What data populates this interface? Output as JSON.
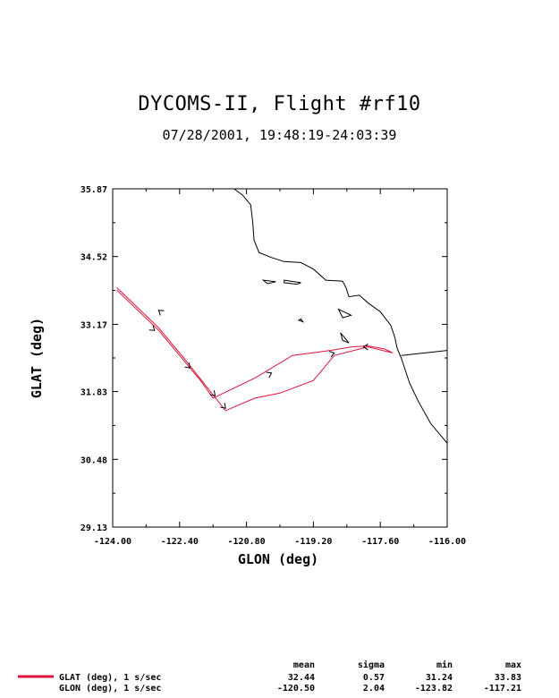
{
  "title": "DYCOMS-II, Flight #rf10",
  "subtitle": "07/28/2001, 19:48:19-24:03:39",
  "chart_data": {
    "type": "line",
    "xlabel": "GLON (deg)",
    "ylabel": "GLAT (deg)",
    "xlim": [
      -124.0,
      -116.0
    ],
    "ylim": [
      29.13,
      35.87
    ],
    "x_ticks": [
      "-124.00",
      "-122.40",
      "-120.80",
      "-119.20",
      "-117.60",
      "-116.00"
    ],
    "y_ticks": [
      "29.13",
      "30.48",
      "31.83",
      "33.17",
      "34.52",
      "35.87"
    ],
    "series_color": "#dc143c",
    "track": [
      [
        -123.9,
        33.85
      ],
      [
        -122.9,
        33.05
      ],
      [
        -122.3,
        32.45
      ],
      [
        -121.9,
        32.05
      ],
      [
        -121.6,
        31.7
      ],
      [
        -120.6,
        32.1
      ],
      [
        -119.7,
        32.55
      ],
      [
        -118.8,
        32.65
      ],
      [
        -118.3,
        32.72
      ],
      [
        -117.9,
        32.74
      ],
      [
        -117.5,
        32.68
      ],
      [
        -117.3,
        32.6
      ],
      [
        -117.9,
        32.72
      ],
      [
        -118.7,
        32.55
      ],
      [
        -119.2,
        32.05
      ],
      [
        -120.0,
        31.8
      ],
      [
        -120.6,
        31.7
      ],
      [
        -121.3,
        31.45
      ],
      [
        -122.3,
        32.5
      ],
      [
        -122.9,
        33.1
      ],
      [
        -123.9,
        33.9
      ]
    ],
    "coastline": [
      [
        -121.1,
        35.87
      ],
      [
        -120.9,
        35.75
      ],
      [
        -120.7,
        35.55
      ],
      [
        -120.65,
        35.2
      ],
      [
        -120.62,
        34.85
      ],
      [
        -120.5,
        34.6
      ],
      [
        -120.2,
        34.5
      ],
      [
        -119.9,
        34.42
      ],
      [
        -119.5,
        34.4
      ],
      [
        -119.2,
        34.27
      ],
      [
        -118.9,
        34.05
      ],
      [
        -118.5,
        34.03
      ],
      [
        -118.42,
        33.9
      ],
      [
        -118.35,
        33.72
      ],
      [
        -118.1,
        33.75
      ],
      [
        -117.9,
        33.6
      ],
      [
        -117.6,
        33.42
      ],
      [
        -117.35,
        33.15
      ],
      [
        -117.25,
        32.9
      ],
      [
        -117.2,
        32.7
      ],
      [
        -117.1,
        32.5
      ],
      [
        -116.9,
        32.0
      ],
      [
        -116.7,
        31.65
      ],
      [
        -116.4,
        31.2
      ],
      [
        -116.0,
        30.8
      ]
    ],
    "islands": [
      [
        [
          -119.9,
          34.05
        ],
        [
          -119.5,
          34.0
        ],
        [
          -119.6,
          33.97
        ],
        [
          -119.9,
          34.0
        ]
      ],
      [
        [
          -120.4,
          34.05
        ],
        [
          -120.1,
          34.02
        ],
        [
          -120.3,
          33.98
        ]
      ],
      [
        [
          -118.6,
          33.47
        ],
        [
          -118.3,
          33.35
        ],
        [
          -118.5,
          33.3
        ]
      ],
      [
        [
          -118.55,
          33.0
        ],
        [
          -118.35,
          32.8
        ],
        [
          -118.5,
          32.85
        ]
      ],
      [
        [
          -119.55,
          33.25
        ],
        [
          -119.45,
          33.22
        ],
        [
          -119.5,
          33.28
        ]
      ]
    ],
    "border": [
      [
        -117.1,
        32.55
      ],
      [
        -116.0,
        32.65
      ]
    ],
    "arrows": [
      {
        "x": -123.0,
        "y": 33.05,
        "dir": [
          1,
          -0.8
        ]
      },
      {
        "x": -122.15,
        "y": 32.3,
        "dir": [
          1,
          -1
        ]
      },
      {
        "x": -121.55,
        "y": 31.75,
        "dir": [
          1,
          -1
        ]
      },
      {
        "x": -121.3,
        "y": 31.5,
        "dir": [
          1,
          -1
        ]
      },
      {
        "x": -120.2,
        "y": 32.2,
        "dir": [
          1,
          0.5
        ]
      },
      {
        "x": -118.7,
        "y": 32.6,
        "dir": [
          1,
          0.3
        ]
      },
      {
        "x": -118.0,
        "y": 32.72,
        "dir": [
          -1,
          0
        ]
      },
      {
        "x": -122.9,
        "y": 33.45,
        "dir": [
          -1,
          0.8
        ]
      }
    ]
  },
  "stats": {
    "headers": [
      "mean",
      "sigma",
      "min",
      "max"
    ],
    "rows": [
      {
        "label": "GLAT (deg), 1 s/sec",
        "values": [
          "32.44",
          "0.57",
          "31.24",
          "33.83"
        ]
      },
      {
        "label": "GLON (deg), 1 s/sec",
        "values": [
          "-120.50",
          "2.04",
          "-123.82",
          "-117.21"
        ]
      }
    ]
  }
}
